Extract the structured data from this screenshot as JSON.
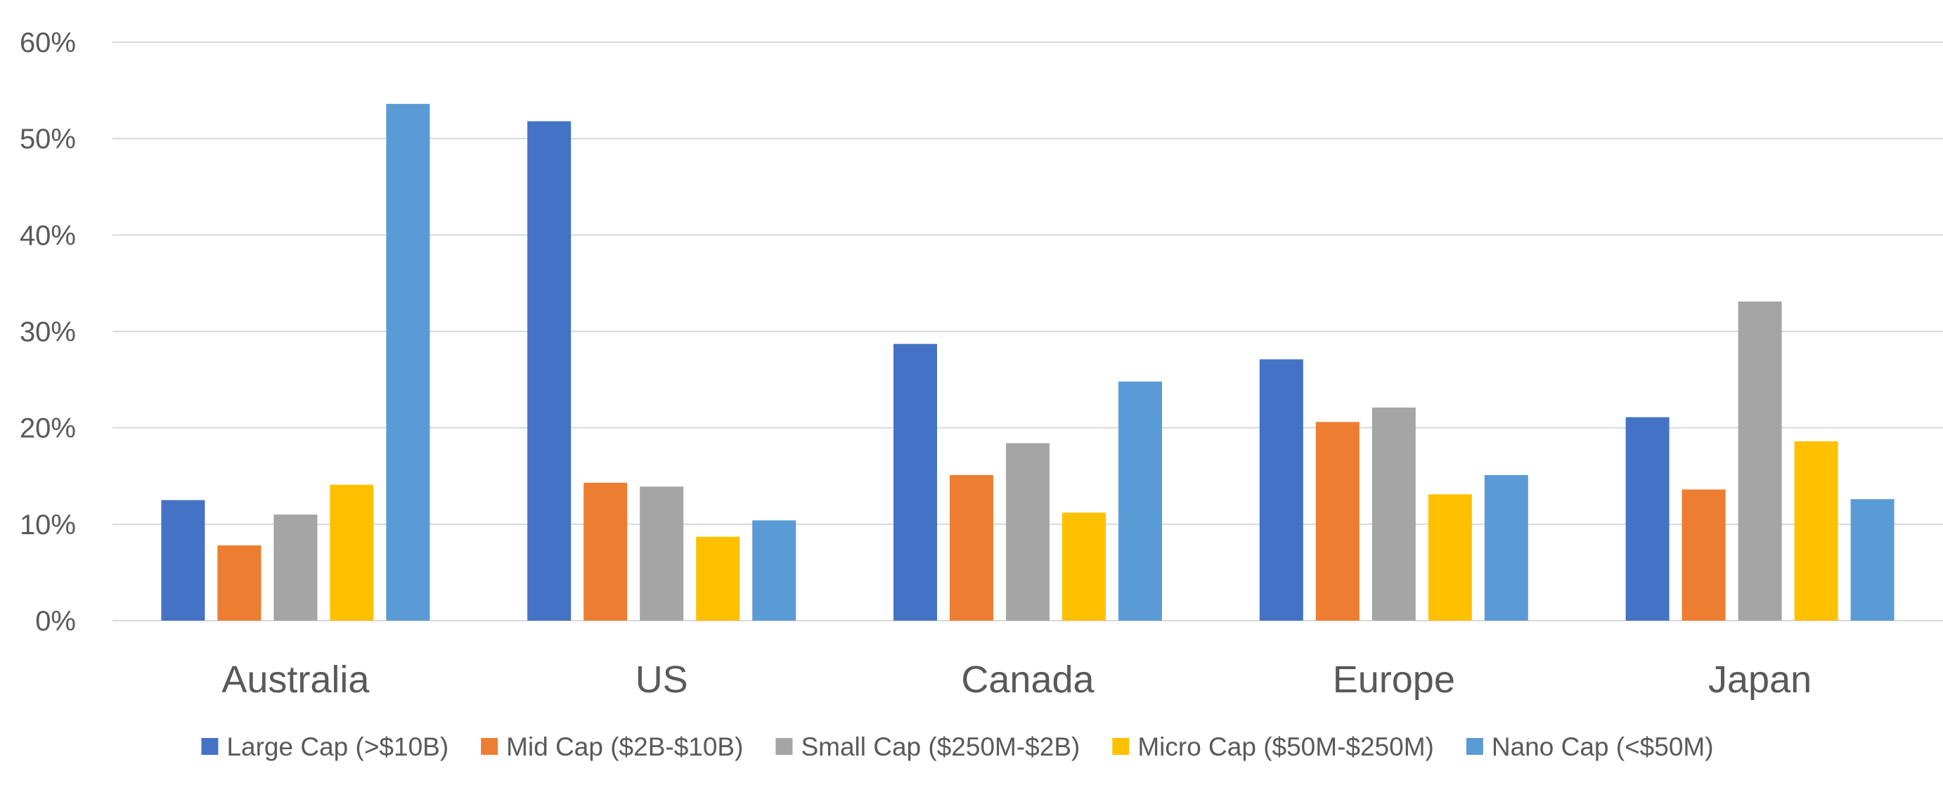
{
  "chart_data": {
    "type": "bar",
    "title": "",
    "xlabel": "",
    "ylabel": "",
    "ylim": [
      0,
      60
    ],
    "yticks": [
      0,
      10,
      20,
      30,
      40,
      50,
      60
    ],
    "ytick_format": "percent",
    "grid": true,
    "legend_position": "bottom",
    "categories": [
      "Australia",
      "US",
      "Canada",
      "Europe",
      "Japan"
    ],
    "series": [
      {
        "name": "Large Cap (>$10B)",
        "color": "#4472C4",
        "values": [
          12.5,
          51.8,
          28.7,
          27.1,
          21.1
        ]
      },
      {
        "name": "Mid Cap ($2B-$10B)",
        "color": "#ED7D31",
        "values": [
          7.8,
          14.3,
          15.1,
          20.6,
          13.6
        ]
      },
      {
        "name": "Small Cap ($250M-$2B)",
        "color": "#A5A5A5",
        "values": [
          11.0,
          13.9,
          18.4,
          22.1,
          33.1
        ]
      },
      {
        "name": "Micro Cap ($50M-$250M)",
        "color": "#FFC000",
        "values": [
          14.1,
          8.7,
          11.2,
          13.1,
          18.6
        ]
      },
      {
        "name": "Nano Cap (<$50M)",
        "color": "#5B9BD5",
        "values": [
          53.6,
          10.4,
          24.8,
          15.1,
          12.6
        ]
      }
    ]
  }
}
